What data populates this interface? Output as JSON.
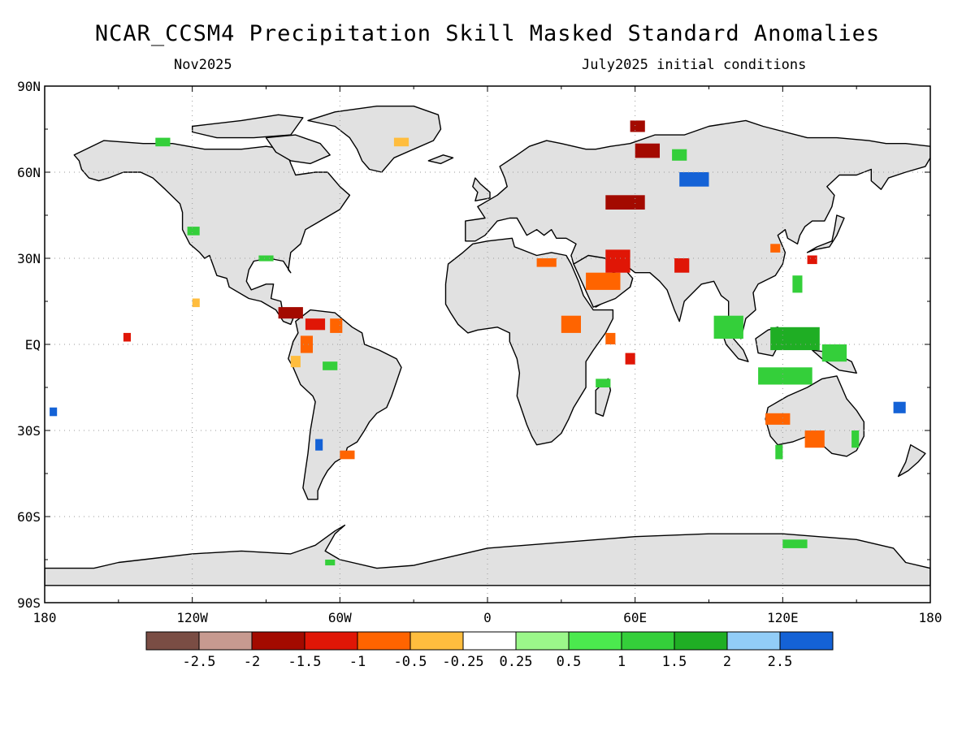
{
  "header": {
    "title": "NCAR_CCSM4 Precipitation Skill Masked Standard Anomalies",
    "target_month": "Nov2025",
    "init_text": "July2025 initial conditions"
  },
  "axes": {
    "lat_labels": [
      {
        "lat": 90,
        "text": "90N"
      },
      {
        "lat": 60,
        "text": "60N"
      },
      {
        "lat": 30,
        "text": "30N"
      },
      {
        "lat": 0,
        "text": "EQ"
      },
      {
        "lat": -30,
        "text": "30S"
      },
      {
        "lat": -60,
        "text": "60S"
      },
      {
        "lat": -90,
        "text": "90S"
      }
    ],
    "lon_labels": [
      {
        "lon": -180,
        "text": "180"
      },
      {
        "lon": -120,
        "text": "120W"
      },
      {
        "lon": -60,
        "text": "60W"
      },
      {
        "lon": 0,
        "text": "0"
      },
      {
        "lon": 60,
        "text": "60E"
      },
      {
        "lon": 120,
        "text": "120E"
      },
      {
        "lon": 180,
        "text": "180"
      }
    ]
  },
  "colors": {
    "masked": "#e1e1e1",
    "ocean": "#ffffff",
    "coast": "#000000",
    "grid": "#9a9a9a"
  },
  "colorbar": {
    "colors": [
      "#7a4d44",
      "#c79a90",
      "#a30a00",
      "#e01606",
      "#ff6400",
      "#ffbd3e",
      "#ffffff",
      "#9bf78a",
      "#4bea4e",
      "#34cf3a",
      "#1fae24",
      "#92cdf7",
      "#1462d6"
    ],
    "tick_labels": [
      "-2.5",
      "-2",
      "-1.5",
      "-1",
      "-0.5",
      "-0.25",
      "0.25",
      "0.5",
      "1",
      "1.5",
      "2",
      "2.5"
    ]
  },
  "anomalies": [
    {
      "lon": -85,
      "lat": 13,
      "w": 10,
      "h": 4,
      "cat": 2
    },
    {
      "lon": -74,
      "lat": 9,
      "w": 8,
      "h": 4,
      "cat": 3
    },
    {
      "lon": -64,
      "lat": 9,
      "w": 5,
      "h": 5,
      "cat": 4
    },
    {
      "lon": -76,
      "lat": 3,
      "w": 5,
      "h": 6,
      "cat": 4
    },
    {
      "lon": -80,
      "lat": -4,
      "w": 4,
      "h": 4,
      "cat": 5
    },
    {
      "lon": -67,
      "lat": -6,
      "w": 6,
      "h": 3,
      "cat": 9
    },
    {
      "lon": -60,
      "lat": -37,
      "w": 6,
      "h": 3,
      "cat": 4
    },
    {
      "lon": -70,
      "lat": -33,
      "w": 3,
      "h": 4,
      "cat": 12
    },
    {
      "lon": -135,
      "lat": 72,
      "w": 6,
      "h": 3,
      "cat": 9
    },
    {
      "lon": -122,
      "lat": 41,
      "w": 5,
      "h": 3,
      "cat": 9
    },
    {
      "lon": -93,
      "lat": 31,
      "w": 6,
      "h": 2,
      "cat": 9
    },
    {
      "lon": -178,
      "lat": -22,
      "w": 3,
      "h": 3,
      "cat": 12
    },
    {
      "lon": -120,
      "lat": 16,
      "w": 3,
      "h": 3,
      "cat": 5
    },
    {
      "lon": -148,
      "lat": 4,
      "w": 3,
      "h": 3,
      "cat": 3
    },
    {
      "lon": 40,
      "lat": 25,
      "w": 14,
      "h": 6,
      "cat": 4
    },
    {
      "lon": 20,
      "lat": 30,
      "w": 8,
      "h": 3,
      "cat": 4
    },
    {
      "lon": 30,
      "lat": 10,
      "w": 8,
      "h": 6,
      "cat": 4
    },
    {
      "lon": 48,
      "lat": 4,
      "w": 4,
      "h": 4,
      "cat": 4
    },
    {
      "lon": 56,
      "lat": -3,
      "w": 4,
      "h": 4,
      "cat": 3
    },
    {
      "lon": 44,
      "lat": -12,
      "w": 6,
      "h": 3,
      "cat": 9
    },
    {
      "lon": 48,
      "lat": 52,
      "w": 16,
      "h": 5,
      "cat": 2
    },
    {
      "lon": 48,
      "lat": 33,
      "w": 10,
      "h": 8,
      "cat": 3
    },
    {
      "lon": 60,
      "lat": 70,
      "w": 10,
      "h": 5,
      "cat": 2
    },
    {
      "lon": 58,
      "lat": 78,
      "w": 6,
      "h": 4,
      "cat": 2
    },
    {
      "lon": 78,
      "lat": 60,
      "w": 12,
      "h": 5,
      "cat": 12
    },
    {
      "lon": 76,
      "lat": 30,
      "w": 6,
      "h": 5,
      "cat": 3
    },
    {
      "lon": 92,
      "lat": 10,
      "w": 12,
      "h": 8,
      "cat": 9
    },
    {
      "lon": 115,
      "lat": 6,
      "w": 20,
      "h": 8,
      "cat": 10
    },
    {
      "lon": 110,
      "lat": -8,
      "w": 22,
      "h": 6,
      "cat": 9
    },
    {
      "lon": 136,
      "lat": 0,
      "w": 10,
      "h": 6,
      "cat": 9
    },
    {
      "lon": 113,
      "lat": -24,
      "w": 10,
      "h": 4,
      "cat": 4
    },
    {
      "lon": 129,
      "lat": -30,
      "w": 8,
      "h": 6,
      "cat": 4
    },
    {
      "lon": 124,
      "lat": 24,
      "w": 4,
      "h": 6,
      "cat": 9
    },
    {
      "lon": 130,
      "lat": 31,
      "w": 4,
      "h": 3,
      "cat": 3
    },
    {
      "lon": 115,
      "lat": 35,
      "w": 4,
      "h": 3,
      "cat": 4
    },
    {
      "lon": 165,
      "lat": -20,
      "w": 5,
      "h": 4,
      "cat": 12
    },
    {
      "lon": 148,
      "lat": -30,
      "w": 3,
      "h": 6,
      "cat": 9
    },
    {
      "lon": 117,
      "lat": -35,
      "w": 3,
      "h": 5,
      "cat": 9
    },
    {
      "lon": 120,
      "lat": -68,
      "w": 10,
      "h": 3,
      "cat": 9
    },
    {
      "lon": 75,
      "lat": 68,
      "w": 6,
      "h": 4,
      "cat": 9
    },
    {
      "lon": -38,
      "lat": 72,
      "w": 6,
      "h": 3,
      "cat": 5
    },
    {
      "lon": -66,
      "lat": -75,
      "w": 4,
      "h": 2,
      "cat": 9
    }
  ]
}
